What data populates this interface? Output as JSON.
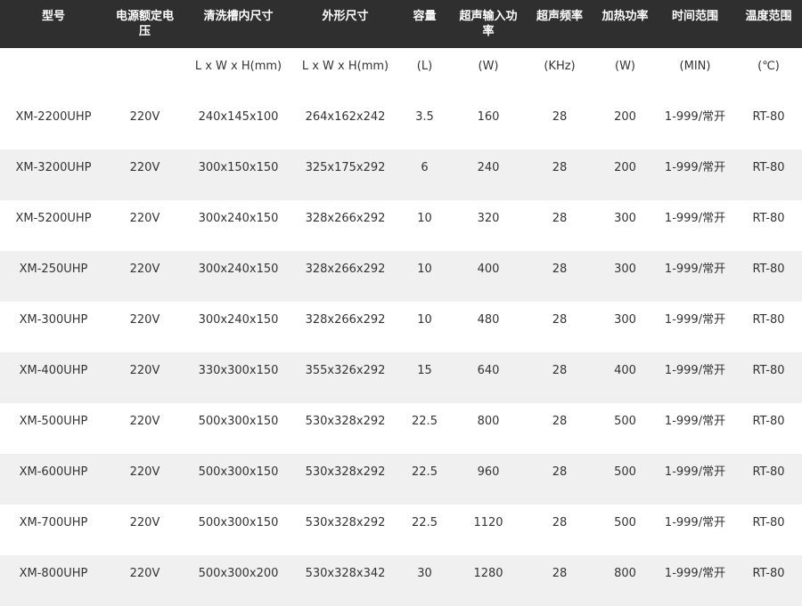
{
  "headers": [
    "型号",
    "电源额定电压",
    "清洗槽内尺寸",
    "外形尺寸",
    "容量",
    "超声输入功率",
    "超声频率",
    "加热功率",
    "时间范围",
    "温度范围"
  ],
  "units": [
    "",
    "",
    "L x W x H(mm)",
    "L x W x H(mm)",
    "(L)",
    "(W)",
    "(KHz)",
    "(W)",
    "(MIN)",
    "(℃)"
  ],
  "rows": [
    [
      "XM-2200UHP",
      "220V",
      "240x145x100",
      "264x162x242",
      "3.5",
      "160",
      "28",
      "200",
      "1-999/常开",
      "RT-80"
    ],
    [
      "XM-3200UHP",
      "220V",
      "300x150x150",
      "325x175x292",
      "6",
      "240",
      "28",
      "200",
      "1-999/常开",
      "RT-80"
    ],
    [
      "XM-5200UHP",
      "220V",
      "300x240x150",
      "328x266x292",
      "10",
      "320",
      "28",
      "300",
      "1-999/常开",
      "RT-80"
    ],
    [
      "XM-250UHP",
      "220V",
      "300x240x150",
      "328x266x292",
      "10",
      "400",
      "28",
      "300",
      "1-999/常开",
      "RT-80"
    ],
    [
      "XM-300UHP",
      "220V",
      "300x240x150",
      "328x266x292",
      "10",
      "480",
      "28",
      "300",
      "1-999/常开",
      "RT-80"
    ],
    [
      "XM-400UHP",
      "220V",
      "330x300x150",
      "355x326x292",
      "15",
      "640",
      "28",
      "400",
      "1-999/常开",
      "RT-80"
    ],
    [
      "XM-500UHP",
      "220V",
      "500x300x150",
      "530x328x292",
      "22.5",
      "800",
      "28",
      "500",
      "1-999/常开",
      "RT-80"
    ],
    [
      "XM-600UHP",
      "220V",
      "500x300x150",
      "530x328x292",
      "22.5",
      "960",
      "28",
      "500",
      "1-999/常开",
      "RT-80"
    ],
    [
      "XM-700UHP",
      "220V",
      "500x300x150",
      "530x328x292",
      "22.5",
      "1120",
      "28",
      "500",
      "1-999/常开",
      "RT-80"
    ],
    [
      "XM-800UHP",
      "220V",
      "500x300x200",
      "530x328x342",
      "30",
      "1280",
      "28",
      "800",
      "1-999/常开",
      "RT-80"
    ]
  ]
}
